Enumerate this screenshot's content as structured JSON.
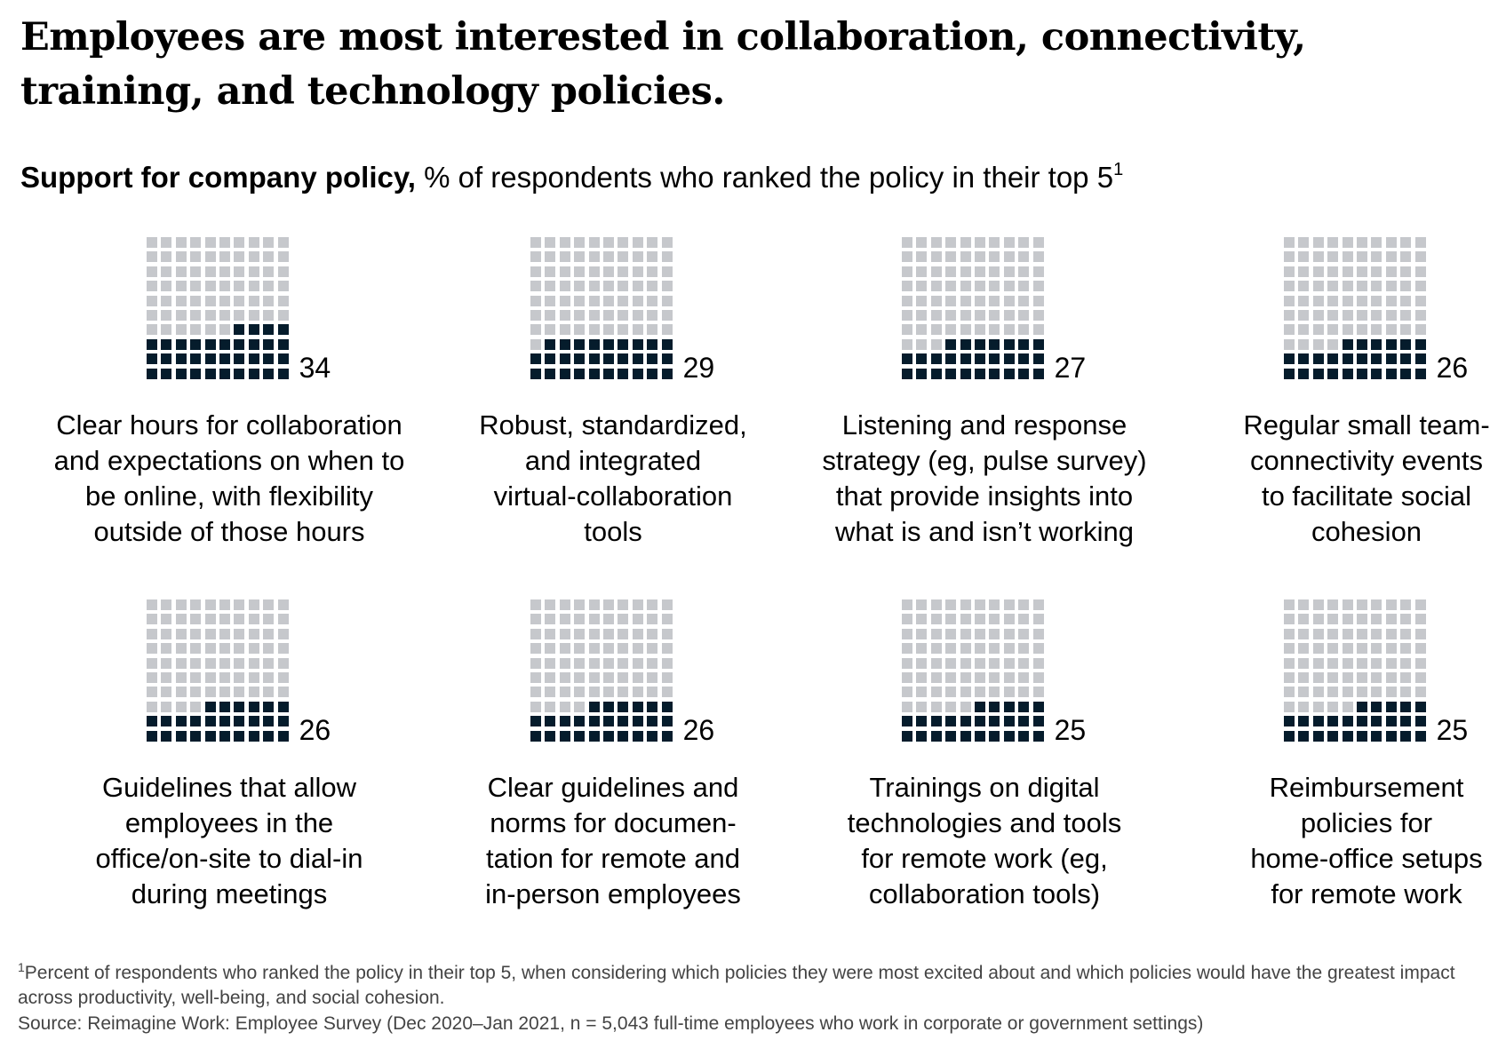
{
  "title": "Employees are most interested in collaboration, connectivity, training, and technology policies.",
  "subtitle": {
    "bold": "Support for company policy,",
    "rest": " % of respondents who ranked the policy in their top 5",
    "sup": "1"
  },
  "chart_data": {
    "type": "waffle",
    "title": "Support for company policy, % of respondents who ranked the policy in their top 5",
    "unit": "% of respondents",
    "total_cells": 100,
    "grid_rows": 10,
    "grid_cols": 10,
    "categories": [
      "Clear hours for collaboration and expectations on when to be online, with flexibility outside of those hours",
      "Robust, standardized, and integrated virtual-collaboration tools",
      "Listening and response strategy (eg, pulse survey) that provide insights into what is and isn’t working",
      "Regular small team-connectivity events to facilitate social cohesion",
      "Guidelines that allow employees in the office/on-site to dial-in during meetings",
      "Clear guidelines and norms for documentation for remote and in-person employees",
      "Trainings on digital technologies and tools for remote work (eg, collaboration tools)",
      "Reimbursement policies for home-office setups for remote work"
    ],
    "values": [
      34,
      29,
      27,
      26,
      26,
      26,
      25,
      25
    ],
    "labels": [
      "Clear hours for collaboration\nand expectations on when to\nbe online, with flexibility\noutside of those hours",
      "Robust, standardized,\nand integrated\nvirtual-collaboration\ntools",
      "Listening and response\nstrategy (eg, pulse survey)\nthat provide insights into\nwhat is and isn’t working",
      "Regular small team-\nconnectivity events\nto facilitate social\ncohesion",
      "Guidelines that allow\nemployees in the\noffice/on-site to dial-in\nduring meetings",
      "Clear guidelines and\nnorms for documen-\ntation  for remote and\nin-person employees",
      "Trainings on digital\ntechnologies and tools\nfor remote work (eg,\ncollaboration tools)",
      "Reimbursement\npolicies for\nhome-office setups\nfor remote work"
    ],
    "value_labels": [
      "34",
      "29",
      "27",
      "26",
      "26",
      "26",
      "25",
      "25"
    ],
    "colors": {
      "filled": "#051c2c",
      "empty": "#c6c8cc"
    }
  },
  "footnote": {
    "sup": "1",
    "text": "Percent of respondents who ranked the policy in their top 5, when considering which policies they were most excited about and which policies would have the greatest impact across productivity, well-being, and social cohesion."
  },
  "source": "Source: Reimagine Work: Employee Survey (Dec 2020–Jan 2021, n = 5,043 full-time employees who work in corporate or government settings)"
}
